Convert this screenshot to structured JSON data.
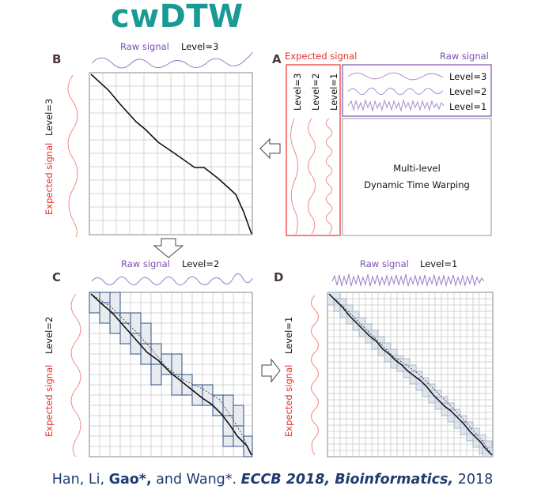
{
  "title": "cwDTW",
  "panels": {
    "A": {
      "letter": "A",
      "expected_label": "Expected signal",
      "raw_label": "Raw signal",
      "levels": [
        "Level=3",
        "Level=2",
        "Level=1"
      ],
      "box_line1": "Multi-level",
      "box_line2": "Dynamic Time Warping"
    },
    "B": {
      "letter": "B",
      "raw_label": "Raw signal",
      "level": "Level=3",
      "expected_label": "Expected signal",
      "side_level": "Level=3"
    },
    "C": {
      "letter": "C",
      "raw_label": "Raw signal",
      "level": "Level=2",
      "expected_label": "Expected signal",
      "side_level": "Level=2"
    },
    "D": {
      "letter": "D",
      "raw_label": "Raw signal",
      "level": "Level=1",
      "expected_label": "Expected signal",
      "side_level": "Level=1"
    }
  },
  "citation": {
    "authors_plain": "Han, Li, ",
    "author_bold": "Gao*,",
    "authors_tail": " and Wang*. ",
    "venue1": "ECCB 2018",
    "sep": ", ",
    "venue2": "Bioinformatics,",
    "year": " 2018"
  },
  "colors": {
    "title": "#1a9a94",
    "raw_signal": "#7b4fb0",
    "expected_signal": "#e8302a",
    "band_fill": "#e8ebef",
    "band_stroke": "#2f4f82",
    "grid": "#c9c9c9",
    "citation": "#1f3b6f"
  }
}
